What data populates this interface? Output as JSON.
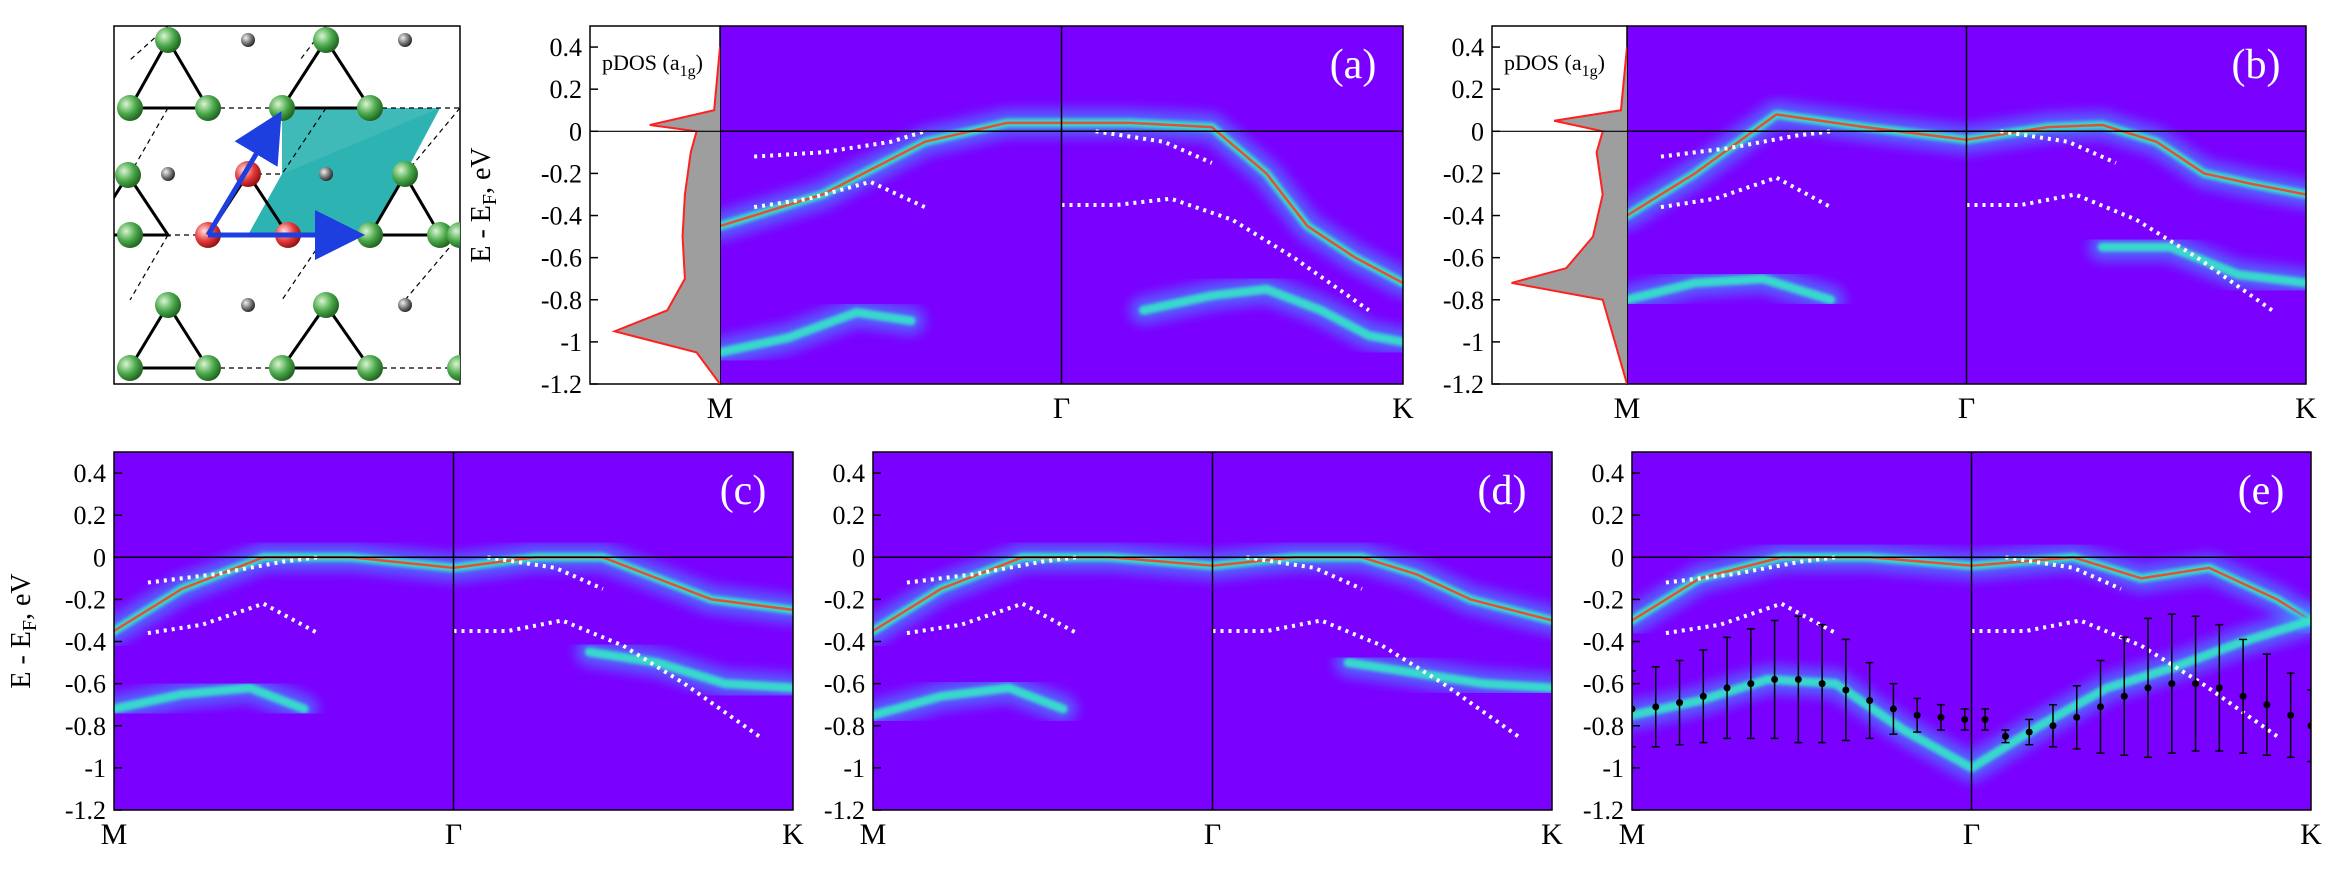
{
  "figure": {
    "ylabel": "E - E",
    "ylabel_sub": "F",
    "ylabel_tail": ", eV",
    "pdos_label": "pDOS (a",
    "pdos_label_sub": "1g",
    "pdos_label_tail": ")",
    "kpoints": [
      "M",
      "Γ",
      "K"
    ],
    "yticks": [
      "0.4",
      "0.2",
      "0",
      "-0.2",
      "-0.4",
      "-0.6",
      "-0.8",
      "-1",
      "-1.2"
    ]
  },
  "chart_data": [
    {
      "type": "heatmap",
      "panel": "(a)",
      "ylim": [
        -1.2,
        0.5
      ],
      "yticks": [
        0.4,
        0.2,
        0,
        -0.2,
        -0.4,
        -0.6,
        -0.8,
        -1,
        -1.2
      ],
      "xticks": [
        "M",
        "Γ",
        "K"
      ],
      "bands": [
        {
          "k": [
            0,
            0.15,
            0.3,
            0.42,
            0.5,
            0.6,
            0.72,
            0.8,
            0.86,
            0.93,
            1.0
          ],
          "e": [
            -0.45,
            -0.3,
            -0.05,
            0.04,
            0.04,
            0.04,
            0.02,
            -0.2,
            -0.45,
            -0.6,
            -0.72
          ]
        },
        {
          "k": [
            0,
            0.1,
            0.2,
            0.28
          ],
          "e": [
            -1.05,
            -0.98,
            -0.86,
            -0.9
          ]
        },
        {
          "k": [
            0.62,
            0.72,
            0.8,
            0.88,
            0.95,
            1.0
          ],
          "e": [
            -0.85,
            -0.78,
            -0.75,
            -0.85,
            -0.97,
            -1.0
          ]
        }
      ],
      "dft_points": [
        {
          "k": [
            0.05,
            0.15,
            0.25,
            0.3
          ],
          "e": [
            -0.12,
            -0.1,
            -0.05,
            0.0
          ]
        },
        {
          "k": [
            0.05,
            0.13,
            0.22,
            0.3
          ],
          "e": [
            -0.36,
            -0.32,
            -0.24,
            -0.36
          ]
        },
        {
          "k": [
            0.55,
            0.65,
            0.72
          ],
          "e": [
            0.0,
            -0.05,
            -0.15
          ]
        },
        {
          "k": [
            0.5,
            0.58,
            0.66,
            0.75,
            0.84,
            0.95
          ],
          "e": [
            -0.35,
            -0.35,
            -0.32,
            -0.42,
            -0.6,
            -0.85
          ]
        }
      ],
      "pdos": {
        "e": [
          0.4,
          0.1,
          0.03,
          0.0,
          -0.1,
          -0.3,
          -0.5,
          -0.7,
          -0.85,
          -0.95,
          -1.05,
          -1.2
        ],
        "value": [
          0.0,
          0.05,
          0.6,
          0.2,
          0.25,
          0.3,
          0.32,
          0.3,
          0.45,
          0.9,
          0.2,
          0.0
        ]
      }
    },
    {
      "type": "heatmap",
      "panel": "(b)",
      "ylim": [
        -1.2,
        0.5
      ],
      "yticks": [
        0.4,
        0.2,
        0,
        -0.2,
        -0.4,
        -0.6,
        -0.8,
        -1,
        -1.2
      ],
      "xticks": [
        "M",
        "Γ",
        "K"
      ],
      "bands": [
        {
          "k": [
            0,
            0.1,
            0.22,
            0.35,
            0.5,
            0.62,
            0.7,
            0.78,
            0.85,
            0.92,
            1.0
          ],
          "e": [
            -0.4,
            -0.2,
            0.08,
            0.02,
            -0.04,
            0.02,
            0.03,
            -0.05,
            -0.2,
            -0.25,
            -0.3
          ]
        },
        {
          "k": [
            0,
            0.1,
            0.2,
            0.3
          ],
          "e": [
            -0.8,
            -0.72,
            -0.7,
            -0.8
          ]
        },
        {
          "k": [
            0.7,
            0.8,
            0.9,
            1.0
          ],
          "e": [
            -0.55,
            -0.55,
            -0.68,
            -0.72
          ]
        }
      ],
      "dft_points": [
        {
          "k": [
            0.05,
            0.15,
            0.25,
            0.3
          ],
          "e": [
            -0.12,
            -0.08,
            -0.02,
            0.0
          ]
        },
        {
          "k": [
            0.05,
            0.13,
            0.22,
            0.3
          ],
          "e": [
            -0.36,
            -0.32,
            -0.22,
            -0.36
          ]
        },
        {
          "k": [
            0.55,
            0.65,
            0.72
          ],
          "e": [
            0.0,
            -0.05,
            -0.15
          ]
        },
        {
          "k": [
            0.5,
            0.58,
            0.66,
            0.75,
            0.84,
            0.95
          ],
          "e": [
            -0.35,
            -0.35,
            -0.3,
            -0.42,
            -0.6,
            -0.85
          ]
        }
      ],
      "pdos": {
        "e": [
          0.4,
          0.1,
          0.05,
          0.0,
          -0.1,
          -0.3,
          -0.5,
          -0.65,
          -0.72,
          -0.8,
          -1.2
        ],
        "value": [
          0.0,
          0.05,
          0.6,
          0.2,
          0.25,
          0.2,
          0.28,
          0.5,
          0.95,
          0.2,
          0.0
        ]
      }
    },
    {
      "type": "heatmap",
      "panel": "(c)",
      "ylim": [
        -1.2,
        0.5
      ],
      "yticks": [
        0.4,
        0.2,
        0,
        -0.2,
        -0.4,
        -0.6,
        -0.8,
        -1,
        -1.2
      ],
      "xticks": [
        "M",
        "Γ",
        "K"
      ],
      "bands": [
        {
          "k": [
            0,
            0.1,
            0.22,
            0.35,
            0.5,
            0.62,
            0.72,
            0.8,
            0.88,
            1.0
          ],
          "e": [
            -0.35,
            -0.15,
            0.0,
            0.0,
            -0.05,
            0.0,
            0.0,
            -0.1,
            -0.2,
            -0.25
          ]
        },
        {
          "k": [
            0,
            0.1,
            0.2,
            0.28
          ],
          "e": [
            -0.72,
            -0.65,
            -0.62,
            -0.72
          ]
        },
        {
          "k": [
            0.7,
            0.8,
            0.9,
            1.0
          ],
          "e": [
            -0.45,
            -0.5,
            -0.6,
            -0.62
          ]
        }
      ],
      "dft_points": [
        {
          "k": [
            0.05,
            0.15,
            0.25,
            0.3
          ],
          "e": [
            -0.12,
            -0.08,
            -0.02,
            0.0
          ]
        },
        {
          "k": [
            0.05,
            0.13,
            0.22,
            0.3
          ],
          "e": [
            -0.36,
            -0.32,
            -0.22,
            -0.36
          ]
        },
        {
          "k": [
            0.55,
            0.65,
            0.72
          ],
          "e": [
            0.0,
            -0.05,
            -0.15
          ]
        },
        {
          "k": [
            0.5,
            0.58,
            0.66,
            0.75,
            0.84,
            0.95
          ],
          "e": [
            -0.35,
            -0.35,
            -0.3,
            -0.42,
            -0.6,
            -0.85
          ]
        }
      ]
    },
    {
      "type": "heatmap",
      "panel": "(d)",
      "ylim": [
        -1.2,
        0.5
      ],
      "yticks": [
        0.4,
        0.2,
        0,
        -0.2,
        -0.4,
        -0.6,
        -0.8,
        -1,
        -1.2
      ],
      "xticks": [
        "M",
        "Γ",
        "K"
      ],
      "bands": [
        {
          "k": [
            0,
            0.1,
            0.22,
            0.35,
            0.5,
            0.62,
            0.72,
            0.8,
            0.88,
            1.0
          ],
          "e": [
            -0.35,
            -0.15,
            0.0,
            0.0,
            -0.04,
            0.0,
            0.0,
            -0.08,
            -0.2,
            -0.3
          ]
        },
        {
          "k": [
            0,
            0.1,
            0.2,
            0.28
          ],
          "e": [
            -0.75,
            -0.66,
            -0.62,
            -0.72
          ]
        },
        {
          "k": [
            0.7,
            0.8,
            0.9,
            1.0
          ],
          "e": [
            -0.5,
            -0.55,
            -0.6,
            -0.62
          ]
        }
      ],
      "dft_points": [
        {
          "k": [
            0.05,
            0.15,
            0.25,
            0.3
          ],
          "e": [
            -0.12,
            -0.08,
            -0.02,
            0.0
          ]
        },
        {
          "k": [
            0.05,
            0.13,
            0.22,
            0.3
          ],
          "e": [
            -0.36,
            -0.32,
            -0.22,
            -0.36
          ]
        },
        {
          "k": [
            0.55,
            0.65,
            0.72
          ],
          "e": [
            0.0,
            -0.05,
            -0.15
          ]
        },
        {
          "k": [
            0.5,
            0.58,
            0.66,
            0.75,
            0.84,
            0.95
          ],
          "e": [
            -0.35,
            -0.35,
            -0.3,
            -0.42,
            -0.6,
            -0.85
          ]
        }
      ]
    },
    {
      "type": "heatmap",
      "panel": "(e)",
      "ylim": [
        -1.2,
        0.5
      ],
      "yticks": [
        0.4,
        0.2,
        0,
        -0.2,
        -0.4,
        -0.6,
        -0.8,
        -1,
        -1.2
      ],
      "xticks": [
        "M",
        "Γ",
        "K"
      ],
      "bands": [
        {
          "k": [
            0,
            0.1,
            0.22,
            0.35,
            0.5,
            0.65,
            0.75,
            0.85,
            0.95,
            1.0
          ],
          "e": [
            -0.3,
            -0.1,
            0.0,
            0.0,
            -0.04,
            0.0,
            -0.1,
            -0.05,
            -0.2,
            -0.3
          ]
        },
        {
          "k": [
            0,
            0.1,
            0.2,
            0.3,
            0.4,
            0.5,
            0.6,
            0.7,
            0.8,
            0.9,
            1.0
          ],
          "e": [
            -0.75,
            -0.68,
            -0.58,
            -0.6,
            -0.82,
            -1.0,
            -0.8,
            -0.62,
            -0.52,
            -0.4,
            -0.3
          ]
        }
      ],
      "dft_points": [
        {
          "k": [
            0.05,
            0.15,
            0.25,
            0.3
          ],
          "e": [
            -0.12,
            -0.08,
            -0.02,
            0.0
          ]
        },
        {
          "k": [
            0.05,
            0.13,
            0.22,
            0.3
          ],
          "e": [
            -0.36,
            -0.32,
            -0.22,
            -0.36
          ]
        },
        {
          "k": [
            0.55,
            0.65,
            0.72
          ],
          "e": [
            0.0,
            -0.05,
            -0.15
          ]
        },
        {
          "k": [
            0.5,
            0.58,
            0.66,
            0.75,
            0.84,
            0.95
          ],
          "e": [
            -0.35,
            -0.35,
            -0.3,
            -0.42,
            -0.6,
            -0.85
          ]
        }
      ],
      "error_points": [
        {
          "k": 0.0,
          "e": -0.72,
          "err": 0.18
        },
        {
          "k": 0.035,
          "e": -0.71,
          "err": 0.19
        },
        {
          "k": 0.07,
          "e": -0.69,
          "err": 0.2
        },
        {
          "k": 0.105,
          "e": -0.66,
          "err": 0.22
        },
        {
          "k": 0.14,
          "e": -0.62,
          "err": 0.24
        },
        {
          "k": 0.175,
          "e": -0.6,
          "err": 0.26
        },
        {
          "k": 0.21,
          "e": -0.58,
          "err": 0.28
        },
        {
          "k": 0.245,
          "e": -0.58,
          "err": 0.3
        },
        {
          "k": 0.28,
          "e": -0.6,
          "err": 0.28
        },
        {
          "k": 0.315,
          "e": -0.63,
          "err": 0.24
        },
        {
          "k": 0.35,
          "e": -0.68,
          "err": 0.18
        },
        {
          "k": 0.385,
          "e": -0.72,
          "err": 0.12
        },
        {
          "k": 0.42,
          "e": -0.75,
          "err": 0.08
        },
        {
          "k": 0.455,
          "e": -0.76,
          "err": 0.06
        },
        {
          "k": 0.49,
          "e": -0.77,
          "err": 0.05
        },
        {
          "k": 0.52,
          "e": -0.77,
          "err": 0.05
        },
        {
          "k": 0.55,
          "e": -0.85,
          "err": 0.03
        },
        {
          "k": 0.585,
          "e": -0.83,
          "err": 0.06
        },
        {
          "k": 0.62,
          "e": -0.8,
          "err": 0.1
        },
        {
          "k": 0.655,
          "e": -0.76,
          "err": 0.15
        },
        {
          "k": 0.69,
          "e": -0.71,
          "err": 0.22
        },
        {
          "k": 0.725,
          "e": -0.66,
          "err": 0.28
        },
        {
          "k": 0.76,
          "e": -0.62,
          "err": 0.33
        },
        {
          "k": 0.795,
          "e": -0.6,
          "err": 0.33
        },
        {
          "k": 0.83,
          "e": -0.6,
          "err": 0.32
        },
        {
          "k": 0.865,
          "e": -0.62,
          "err": 0.3
        },
        {
          "k": 0.9,
          "e": -0.66,
          "err": 0.27
        },
        {
          "k": 0.935,
          "e": -0.7,
          "err": 0.24
        },
        {
          "k": 0.97,
          "e": -0.75,
          "err": 0.2
        },
        {
          "k": 1.0,
          "e": -0.8,
          "err": 0.17
        }
      ]
    }
  ],
  "colors": {
    "background": "#7a00ff",
    "band_low": "#3aa8ff",
    "band_mid": "#35e6c8",
    "band_peak": "#ff3a1a",
    "dft_points": "#ffffff",
    "pdos_fill": "#9e9e9e",
    "pdos_line": "#ff2020",
    "lattice_green": "#3a9e3a",
    "lattice_red": "#e02d2d",
    "lattice_gray": "#555555",
    "cell_fill": "#2bb3b1",
    "vector": "#1e3fe0"
  }
}
